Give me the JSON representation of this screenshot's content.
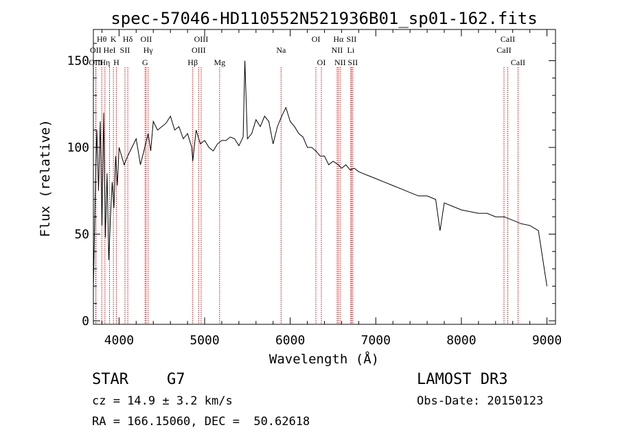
{
  "chart_data": {
    "type": "line",
    "title": "spec-57046-HD110552N521936B01_sp01-162.fits",
    "xlabel": "Wavelength (Å)",
    "ylabel": "Flux (relative)",
    "xlim": [
      3700,
      9100
    ],
    "ylim": [
      -2,
      168
    ],
    "xticks": [
      4000,
      5000,
      6000,
      7000,
      8000,
      9000
    ],
    "yticks": [
      0,
      50,
      100,
      150
    ],
    "grid": false,
    "line_color": "#000000",
    "marker_color": "#cc0000",
    "series": [
      {
        "x": [
          3700,
          3720,
          3740,
          3760,
          3780,
          3800,
          3820,
          3840,
          3860,
          3880,
          3900,
          3920,
          3940,
          3960,
          3980,
          4000,
          4030,
          4060,
          4100,
          4150,
          4200,
          4250,
          4300,
          4340,
          4370,
          4400,
          4450,
          4500,
          4550,
          4600,
          4650,
          4700,
          4750,
          4800,
          4850,
          4861,
          4900,
          4950,
          5000,
          5050,
          5100,
          5150,
          5200,
          5250,
          5300,
          5350,
          5400,
          5450,
          5470,
          5500,
          5550,
          5600,
          5650,
          5700,
          5750,
          5800,
          5850,
          5900,
          5950,
          6000,
          6050,
          6100,
          6150,
          6200,
          6250,
          6300,
          6350,
          6400,
          6450,
          6500,
          6563,
          6600,
          6650,
          6700,
          6750,
          6800,
          6900,
          7000,
          7100,
          7200,
          7300,
          7400,
          7500,
          7600,
          7700,
          7750,
          7800,
          7900,
          8000,
          8100,
          8200,
          8300,
          8400,
          8500,
          8600,
          8700,
          8800,
          8900,
          9000
        ],
        "y": [
          18,
          70,
          110,
          75,
          115,
          55,
          120,
          48,
          85,
          35,
          60,
          80,
          65,
          95,
          78,
          100,
          95,
          90,
          95,
          100,
          105,
          90,
          100,
          108,
          98,
          115,
          110,
          112,
          114,
          118,
          110,
          112,
          105,
          108,
          100,
          92,
          110,
          102,
          104,
          100,
          98,
          102,
          104,
          104,
          106,
          105,
          101,
          106,
          150,
          105,
          108,
          116,
          112,
          118,
          115,
          102,
          112,
          118,
          123,
          115,
          112,
          108,
          106,
          100,
          100,
          98,
          95,
          95,
          90,
          92,
          90,
          88,
          90,
          87,
          88,
          86,
          84,
          82,
          80,
          78,
          76,
          74,
          72,
          72,
          70,
          52,
          68,
          66,
          64,
          63,
          62,
          62,
          60,
          60,
          58,
          56,
          55,
          52,
          20
        ]
      }
    ],
    "lines": [
      {
        "label": "Hθ",
        "x": 3798,
        "row": 0
      },
      {
        "label": "OII",
        "x": 3727,
        "row": 1
      },
      {
        "label": "OIII",
        "x": 3730,
        "row": 2
      },
      {
        "label": "Hη",
        "x": 3835,
        "row": 2
      },
      {
        "label": "K",
        "x": 3934,
        "row": 0
      },
      {
        "label": "HeI",
        "x": 3889,
        "row": 1
      },
      {
        "label": "H",
        "x": 3968,
        "row": 2
      },
      {
        "label": "SII",
        "x": 4069,
        "row": 1
      },
      {
        "label": "Hδ",
        "x": 4102,
        "row": 0
      },
      {
        "label": "OII",
        "x": 4317,
        "row": 0
      },
      {
        "label": "Hγ",
        "x": 4340,
        "row": 1
      },
      {
        "label": "G",
        "x": 4304,
        "row": 2
      },
      {
        "label": "OIII",
        "x": 4959,
        "row": 0
      },
      {
        "label": "OIII",
        "x": 4930,
        "row": 1
      },
      {
        "label": "Hβ",
        "x": 4861,
        "row": 2
      },
      {
        "label": "Mg",
        "x": 5175,
        "row": 2
      },
      {
        "label": "Na",
        "x": 5893,
        "row": 1
      },
      {
        "label": "OI",
        "x": 6300,
        "row": 0
      },
      {
        "label": "OI",
        "x": 6364,
        "row": 2
      },
      {
        "label": "Hα",
        "x": 6563,
        "row": 0
      },
      {
        "label": "SII",
        "x": 6716,
        "row": 0
      },
      {
        "label": "NII",
        "x": 6548,
        "row": 1
      },
      {
        "label": "Li",
        "x": 6708,
        "row": 1
      },
      {
        "label": "NII",
        "x": 6583,
        "row": 2
      },
      {
        "label": "SII",
        "x": 6731,
        "row": 2
      },
      {
        "label": "CaII",
        "x": 8542,
        "row": 0
      },
      {
        "label": "CaII",
        "x": 8498,
        "row": 1
      },
      {
        "label": "CaII",
        "x": 8662,
        "row": 2
      }
    ]
  },
  "info": {
    "class": "STAR",
    "subclass": "G7",
    "survey": "LAMOST DR3",
    "cz": "cz = 14.9 ± 3.2 km/s",
    "obs_date": "Obs-Date: 20150123",
    "coords": "RA = 166.15060, DEC =  50.62618"
  }
}
